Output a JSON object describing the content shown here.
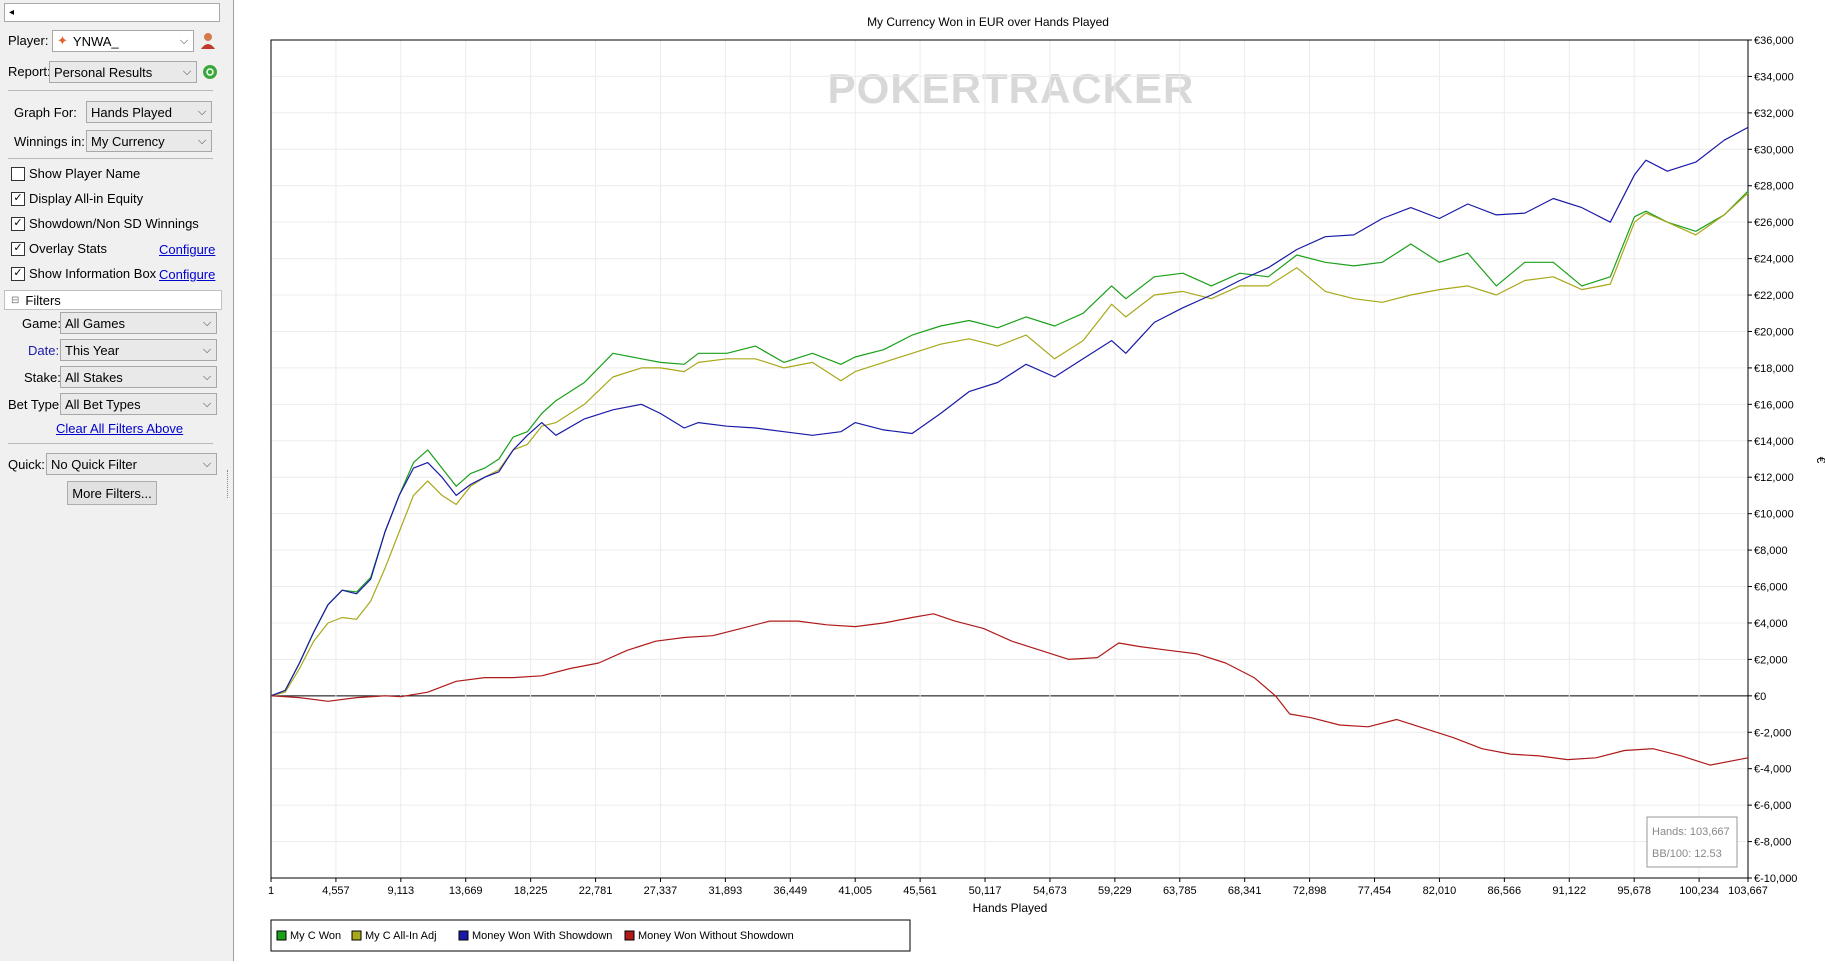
{
  "sidebar": {
    "top_field": "◂",
    "player_label": "Player:",
    "player_value": "YNWA_",
    "report_label": "Report:",
    "report_value": "Personal Results",
    "graph_for_label": "Graph For:",
    "graph_for_value": "Hands Played",
    "winnings_label": "Winnings in:",
    "winnings_value": "My Currency",
    "checkboxes": [
      {
        "label": "Show Player Name",
        "checked": false
      },
      {
        "label": "Display All-in Equity",
        "checked": true
      },
      {
        "label": "Showdown/Non SD Winnings",
        "checked": true
      },
      {
        "label": "Overlay Stats",
        "checked": true
      },
      {
        "label": "Show Information Box",
        "checked": true
      }
    ],
    "configure_label": "Configure",
    "filters_label": "Filters",
    "filters_toggle": "⊟",
    "game_label": "Game:",
    "game_value": "All Games",
    "date_label": "Date:",
    "date_value": "This Year",
    "stake_label": "Stake:",
    "stake_value": "All Stakes",
    "bet_type_label": "Bet Type:",
    "bet_type_value": "All Bet Types",
    "clear_filters_label": "Clear All Filters Above",
    "quick_label": "Quick:",
    "quick_value": "No Quick Filter",
    "more_filters_label": "More Filters..."
  },
  "chart_data": {
    "type": "line",
    "title": "My Currency Won in EUR over Hands Played",
    "xlabel": "Hands Played",
    "ylabel": "€",
    "watermark": "POKERTRACKER",
    "xlim": [
      1,
      103667
    ],
    "ylim": [
      -10000,
      36000
    ],
    "x_ticks": [
      "1",
      "4,557",
      "9,113",
      "13,669",
      "18,225",
      "22,781",
      "27,337",
      "31,893",
      "36,449",
      "41,005",
      "45,561",
      "50,117",
      "54,673",
      "59,229",
      "63,785",
      "68,341",
      "72,898",
      "77,454",
      "82,010",
      "86,566",
      "91,122",
      "95,678",
      "100,234",
      "103,667"
    ],
    "x_tick_values": [
      1,
      4557,
      9113,
      13669,
      18225,
      22781,
      27337,
      31893,
      36449,
      41005,
      45561,
      50117,
      54673,
      59229,
      63785,
      68341,
      72898,
      77454,
      82010,
      86566,
      91122,
      95678,
      100234,
      103667
    ],
    "y_ticks": [
      "€36,000",
      "€34,000",
      "€32,000",
      "€30,000",
      "€28,000",
      "€26,000",
      "€24,000",
      "€22,000",
      "€20,000",
      "€18,000",
      "€16,000",
      "€14,000",
      "€12,000",
      "€10,000",
      "€8,000",
      "€6,000",
      "€4,000",
      "€2,000",
      "€0",
      "€-2,000",
      "€-4,000",
      "€-6,000",
      "€-8,000",
      "€-10,000"
    ],
    "y_tick_values": [
      36000,
      34000,
      32000,
      30000,
      28000,
      26000,
      24000,
      22000,
      20000,
      18000,
      16000,
      14000,
      12000,
      10000,
      8000,
      6000,
      4000,
      2000,
      0,
      -2000,
      -4000,
      -6000,
      -8000,
      -10000
    ],
    "grid": true,
    "legend_position": "bottom-left",
    "info_box": {
      "hands": "Hands: 103,667",
      "bb100": "BB/100: 12.53"
    },
    "series": [
      {
        "name": "My C Won",
        "color": "#1aa01a",
        "x": [
          1,
          1000,
          2000,
          3000,
          4000,
          5000,
          6000,
          7000,
          8000,
          9000,
          10000,
          11000,
          12000,
          13000,
          14000,
          15000,
          16000,
          17000,
          18000,
          19000,
          20000,
          22000,
          24000,
          26000,
          27337,
          29000,
          30000,
          32000,
          34000,
          36000,
          38000,
          40000,
          41000,
          43000,
          45000,
          47000,
          49000,
          51000,
          53000,
          55000,
          57000,
          59000,
          60000,
          62000,
          64000,
          66000,
          68000,
          70000,
          72000,
          74000,
          76000,
          78000,
          80000,
          82000,
          84000,
          86000,
          88000,
          90000,
          92000,
          94000,
          95700,
          96500,
          98000,
          100000,
          102000,
          103667
        ],
        "y": [
          0,
          300,
          1800,
          3500,
          5000,
          5800,
          5700,
          6500,
          9000,
          11000,
          12800,
          13500,
          12500,
          11500,
          12200,
          12500,
          13000,
          14200,
          14500,
          15500,
          16200,
          17200,
          18800,
          18500,
          18300,
          18200,
          18800,
          18800,
          19200,
          18300,
          18800,
          18200,
          18600,
          19000,
          19800,
          20300,
          20600,
          20200,
          20800,
          20300,
          21000,
          22500,
          21800,
          23000,
          23200,
          22500,
          23200,
          23000,
          24200,
          23800,
          23600,
          23800,
          24800,
          23800,
          24300,
          22500,
          23800,
          23800,
          22500,
          23000,
          26300,
          26600,
          26000,
          25500,
          26400,
          27700
        ]
      },
      {
        "name": "My C All-In Adj",
        "color": "#a8a81a",
        "x": [
          1,
          1000,
          2000,
          3000,
          4000,
          5000,
          6000,
          7000,
          8000,
          9000,
          10000,
          11000,
          12000,
          13000,
          14000,
          15000,
          16000,
          17000,
          18000,
          19000,
          20000,
          22000,
          24000,
          26000,
          27337,
          29000,
          30000,
          32000,
          34000,
          36000,
          38000,
          40000,
          41000,
          43000,
          45000,
          47000,
          49000,
          51000,
          53000,
          55000,
          57000,
          59000,
          60000,
          62000,
          64000,
          66000,
          68000,
          70000,
          72000,
          74000,
          76000,
          78000,
          80000,
          82000,
          84000,
          86000,
          88000,
          90000,
          92000,
          94000,
          95700,
          96500,
          98000,
          100000,
          102000,
          103667
        ],
        "y": [
          0,
          200,
          1500,
          3000,
          4000,
          4300,
          4200,
          5200,
          7000,
          9000,
          11000,
          11800,
          11000,
          10500,
          11500,
          12000,
          12400,
          13500,
          13800,
          14800,
          15000,
          16000,
          17500,
          18000,
          18000,
          17800,
          18300,
          18500,
          18500,
          18000,
          18300,
          17300,
          17800,
          18300,
          18800,
          19300,
          19600,
          19200,
          19800,
          18500,
          19500,
          21500,
          20800,
          22000,
          22200,
          21800,
          22500,
          22500,
          23500,
          22200,
          21800,
          21600,
          22000,
          22300,
          22500,
          22000,
          22800,
          23000,
          22300,
          22600,
          26000,
          26500,
          26000,
          25300,
          26400,
          27600
        ]
      },
      {
        "name": "Money Won With Showdown",
        "color": "#1a1aa8",
        "x": [
          1,
          1000,
          2000,
          3000,
          4000,
          5000,
          6000,
          7000,
          8000,
          9000,
          10000,
          11000,
          12000,
          13000,
          14000,
          15000,
          16000,
          17000,
          18000,
          19000,
          20000,
          22000,
          24000,
          26000,
          27337,
          29000,
          30000,
          32000,
          34000,
          36000,
          38000,
          40000,
          41000,
          43000,
          45000,
          47000,
          49000,
          51000,
          53000,
          55000,
          57000,
          59000,
          60000,
          62000,
          64000,
          66000,
          68000,
          70000,
          72000,
          74000,
          76000,
          78000,
          80000,
          82000,
          84000,
          86000,
          88000,
          90000,
          92000,
          94000,
          95700,
          96500,
          98000,
          100000,
          102000,
          103667
        ],
        "y": [
          0,
          300,
          1800,
          3500,
          5000,
          5800,
          5600,
          6400,
          9000,
          11000,
          12500,
          12800,
          12000,
          11000,
          11600,
          12000,
          12300,
          13500,
          14300,
          15000,
          14300,
          15200,
          15700,
          16000,
          15500,
          14700,
          15000,
          14800,
          14700,
          14500,
          14300,
          14500,
          15000,
          14600,
          14400,
          15500,
          16700,
          17200,
          18200,
          17500,
          18500,
          19500,
          18800,
          20500,
          21300,
          22000,
          22800,
          23500,
          24500,
          25200,
          25300,
          26200,
          26800,
          26200,
          27000,
          26400,
          26500,
          27300,
          26800,
          26000,
          28600,
          29400,
          28800,
          29300,
          30500,
          31200
        ]
      },
      {
        "name": "Money Won Without Showdown",
        "color": "#b01a1a",
        "x": [
          1,
          2000,
          4000,
          6000,
          8000,
          9113,
          11000,
          13000,
          15000,
          17000,
          19000,
          21000,
          23000,
          25000,
          27000,
          29000,
          31000,
          33000,
          35000,
          37000,
          39000,
          41000,
          43000,
          45000,
          46500,
          48000,
          50000,
          52000,
          54000,
          56000,
          58000,
          59500,
          61000,
          63000,
          65000,
          67000,
          69000,
          70500,
          71500,
          73000,
          75000,
          77000,
          79000,
          81000,
          83000,
          85000,
          87000,
          89000,
          91000,
          93000,
          95000,
          97000,
          99000,
          101000,
          103667
        ],
        "y": [
          0,
          -100,
          -300,
          -100,
          0,
          -50,
          200,
          800,
          1000,
          1000,
          1100,
          1500,
          1800,
          2500,
          3000,
          3200,
          3300,
          3700,
          4100,
          4100,
          3900,
          3800,
          4000,
          4300,
          4500,
          4100,
          3700,
          3000,
          2500,
          2000,
          2100,
          2900,
          2700,
          2500,
          2300,
          1800,
          1000,
          0,
          -1000,
          -1200,
          -1600,
          -1700,
          -1300,
          -1800,
          -2300,
          -2900,
          -3200,
          -3300,
          -3500,
          -3400,
          -3000,
          -2900,
          -3300,
          -3800,
          -3400
        ]
      }
    ]
  }
}
